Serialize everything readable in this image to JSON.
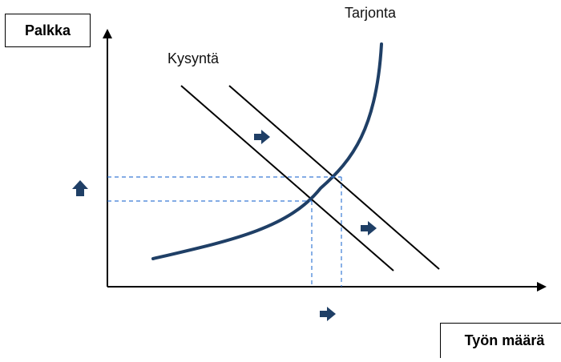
{
  "labels": {
    "y_axis": "Palkka",
    "x_axis": "Työn määrä",
    "supply": "Tarjonta",
    "demand": "Kysyntä"
  },
  "icons": {
    "shift_arrow": "right-arrow-icon",
    "wage_arrow": "up-arrow-icon"
  },
  "colors": {
    "curve": "#1f3f66",
    "lines": "#000000",
    "guides": "#3a7bd5",
    "arrows": "#1f3f66"
  }
}
